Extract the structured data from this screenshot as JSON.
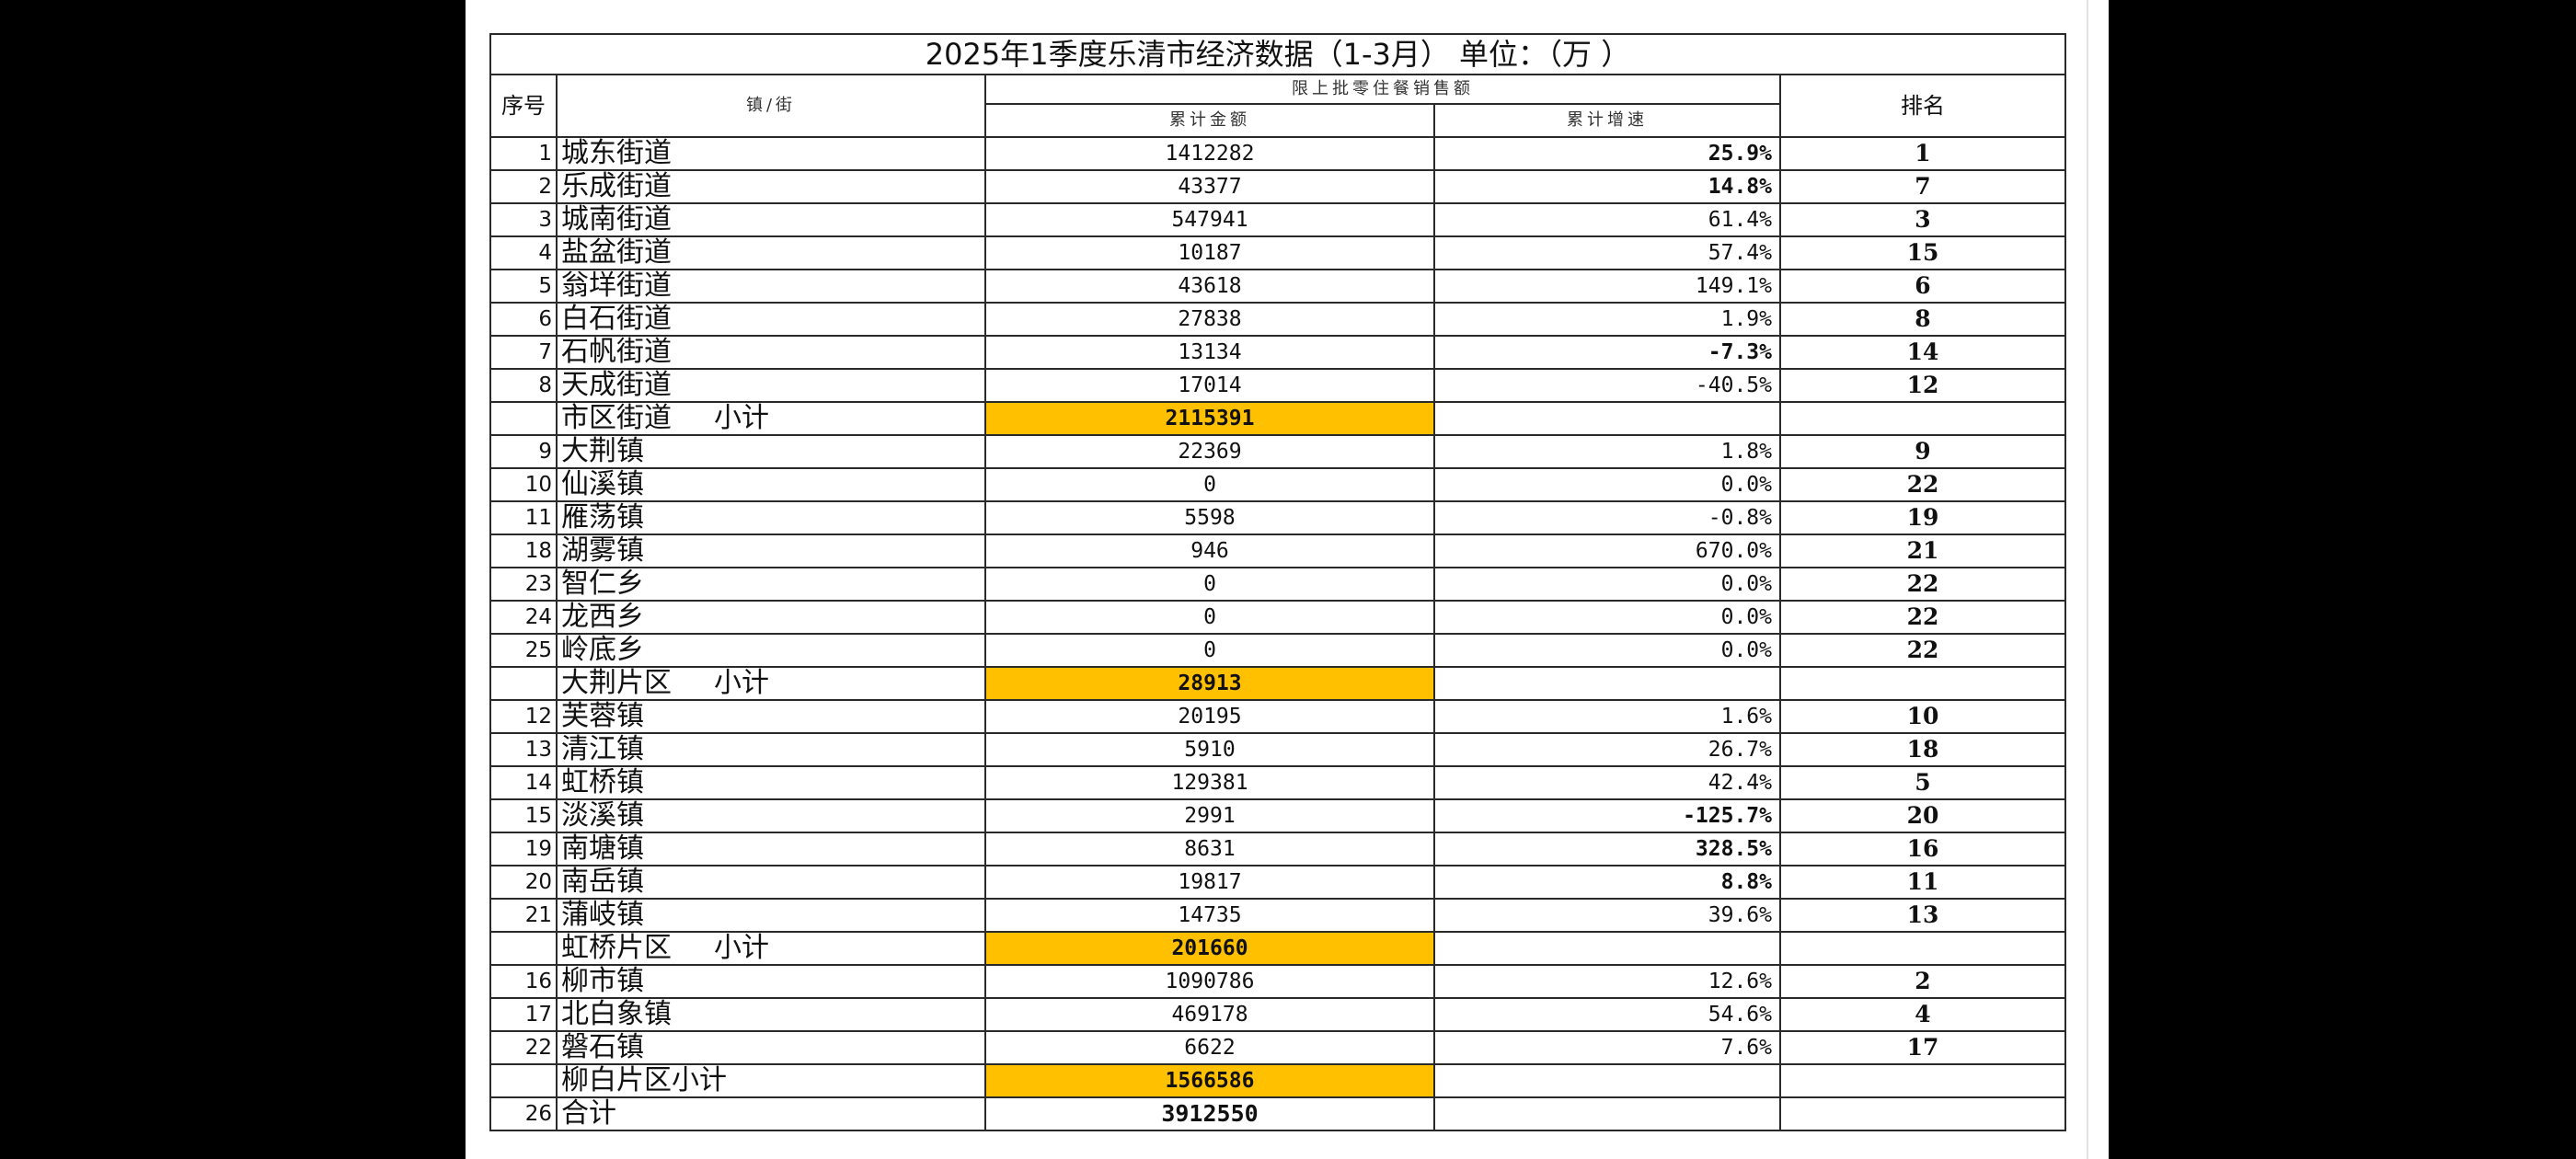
{
  "title": "2025年1季度乐清市经济数据（1-3月）    单位：（万  ）",
  "headers": {
    "no": "序号",
    "town": "镇/街",
    "group": "限上批零住餐销售额",
    "amount": "累计金额",
    "growth": "累计增速",
    "rank": "排名"
  },
  "rows": [
    {
      "type": "row",
      "no": "1",
      "name": "城东街道",
      "amount": "1412282",
      "growth": "25.9%",
      "growth_bold": true,
      "rank": "1"
    },
    {
      "type": "row",
      "no": "2",
      "name": "乐成街道",
      "amount": "43377",
      "growth": "14.8%",
      "growth_bold": true,
      "rank": "7"
    },
    {
      "type": "row",
      "no": "3",
      "name": "城南街道",
      "amount": "547941",
      "growth": "61.4%",
      "growth_bold": false,
      "rank": "3"
    },
    {
      "type": "row",
      "no": "4",
      "name": "盐盆街道",
      "amount": "10187",
      "growth": "57.4%",
      "growth_bold": false,
      "rank": "15"
    },
    {
      "type": "row",
      "no": "5",
      "name": "翁垟街道",
      "amount": "43618",
      "growth": "149.1%",
      "growth_bold": false,
      "rank": "6"
    },
    {
      "type": "row",
      "no": "6",
      "name": "白石街道",
      "amount": "27838",
      "growth": "1.9%",
      "growth_bold": false,
      "rank": "8"
    },
    {
      "type": "row",
      "no": "7",
      "name": "石帆街道",
      "amount": "13134",
      "growth": "-7.3%",
      "growth_bold": true,
      "rank": "14"
    },
    {
      "type": "row",
      "no": "8",
      "name": "天成街道",
      "amount": "17014",
      "growth": "-40.5%",
      "growth_bold": false,
      "rank": "12"
    },
    {
      "type": "subtotal",
      "name": "市区街道",
      "label": "小计",
      "amount": "2115391"
    },
    {
      "type": "row",
      "no": "9",
      "name": "大荆镇",
      "amount": "22369",
      "growth": "1.8%",
      "growth_bold": false,
      "rank": "9"
    },
    {
      "type": "row",
      "no": "10",
      "name": "仙溪镇",
      "amount": "0",
      "growth": "0.0%",
      "growth_bold": false,
      "rank": "22"
    },
    {
      "type": "row",
      "no": "11",
      "name": "雁荡镇",
      "amount": "5598",
      "growth": "-0.8%",
      "growth_bold": false,
      "rank": "19"
    },
    {
      "type": "row",
      "no": "18",
      "name": "湖雾镇",
      "amount": "946",
      "growth": "670.0%",
      "growth_bold": false,
      "rank": "21"
    },
    {
      "type": "row",
      "no": "23",
      "name": "智仁乡",
      "amount": "0",
      "growth": "0.0%",
      "growth_bold": false,
      "rank": "22"
    },
    {
      "type": "row",
      "no": "24",
      "name": "龙西乡",
      "amount": "0",
      "growth": "0.0%",
      "growth_bold": false,
      "rank": "22"
    },
    {
      "type": "row",
      "no": "25",
      "name": "岭底乡",
      "amount": "0",
      "growth": "0.0%",
      "growth_bold": false,
      "rank": "22"
    },
    {
      "type": "subtotal",
      "name": "大荆片区",
      "label": "小计",
      "amount": "28913"
    },
    {
      "type": "row",
      "no": "12",
      "name": "芙蓉镇",
      "amount": "20195",
      "growth": "1.6%",
      "growth_bold": false,
      "rank": "10"
    },
    {
      "type": "row",
      "no": "13",
      "name": "清江镇",
      "amount": "5910",
      "growth": "26.7%",
      "growth_bold": false,
      "rank": "18"
    },
    {
      "type": "row",
      "no": "14",
      "name": "虹桥镇",
      "amount": "129381",
      "growth": "42.4%",
      "growth_bold": false,
      "rank": "5"
    },
    {
      "type": "row",
      "no": "15",
      "name": "淡溪镇",
      "amount": "2991",
      "growth": "-125.7%",
      "growth_bold": true,
      "rank": "20"
    },
    {
      "type": "row",
      "no": "19",
      "name": "南塘镇",
      "amount": "8631",
      "growth": "328.5%",
      "growth_bold": true,
      "rank": "16"
    },
    {
      "type": "row",
      "no": "20",
      "name": "南岳镇",
      "amount": "19817",
      "growth": "8.8%",
      "growth_bold": true,
      "rank": "11"
    },
    {
      "type": "row",
      "no": "21",
      "name": "蒲岐镇",
      "amount": "14735",
      "growth": "39.6%",
      "growth_bold": false,
      "rank": "13"
    },
    {
      "type": "subtotal",
      "name": "虹桥片区",
      "label": "小计",
      "amount": "201660"
    },
    {
      "type": "row",
      "no": "16",
      "name": "柳市镇",
      "amount": "1090786",
      "growth": "12.6%",
      "growth_bold": false,
      "rank": "2"
    },
    {
      "type": "row",
      "no": "17",
      "name": "北白象镇",
      "amount": "469178",
      "growth": "54.6%",
      "growth_bold": false,
      "rank": "4"
    },
    {
      "type": "row",
      "no": "22",
      "name": "磐石镇",
      "amount": "6622",
      "growth": "7.6%",
      "growth_bold": false,
      "rank": "17"
    },
    {
      "type": "subtotal",
      "name": "柳白片区小计",
      "label": "",
      "amount": "1566586"
    },
    {
      "type": "total",
      "no": "26",
      "name": "合计",
      "amount": "3912550"
    }
  ],
  "colors": {
    "highlight": "#ffc000",
    "border": "#2a2a2a",
    "background_outer": "#000000",
    "sheet": "#ffffff"
  }
}
